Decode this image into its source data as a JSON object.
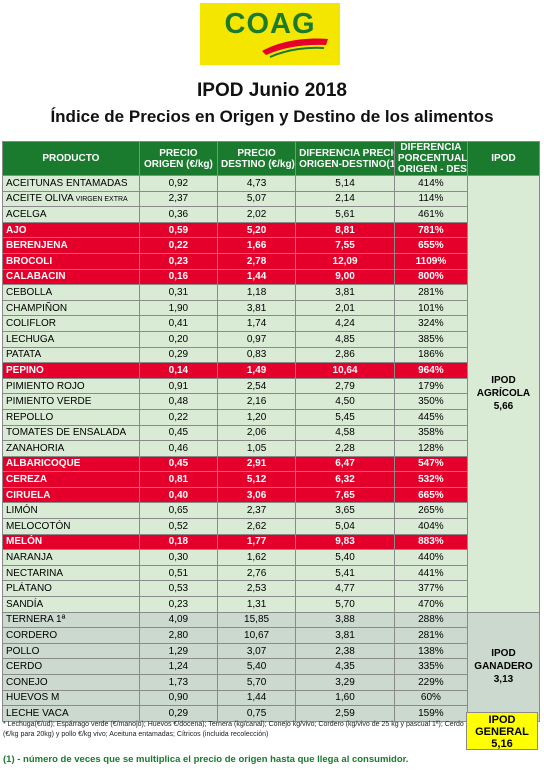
{
  "logo": {
    "text": "COAG",
    "colors": {
      "background": "#f5e600",
      "text": "#1a7a2e",
      "accent": "#e4002b"
    }
  },
  "title": "IPOD Junio 2018",
  "subtitle": "Índice de Precios en Origen y Destino de los alimentos",
  "headers": {
    "producto": "PRODUCTO",
    "precio_origen": [
      "PRECIO",
      "ORIGEN (€/kg)"
    ],
    "precio_destino": [
      "PRECIO",
      "DESTINO (€/kg)"
    ],
    "diferencia": [
      "DIFERENCIA PRECIO",
      "ORIGEN-DESTINO(1)"
    ],
    "porcentual": [
      "DIFERENCIA",
      "PORCENTUAL",
      "ORIGEN - DESTINO"
    ],
    "ipod": "IPOD"
  },
  "colors": {
    "header": "#1a7a2e",
    "highlight": "#e4002b",
    "agricola_bg": "#d9ebd5",
    "ganadero_bg": "#cbd9cf",
    "general_bg": "#ffff00"
  },
  "rows": [
    {
      "producto": "ACEITUNAS ENTAMADAS",
      "origen": "0,92",
      "destino": "4,73",
      "diferencia": "5,14",
      "porcentual": "414%",
      "highlight": false,
      "group": "agr"
    },
    {
      "producto": "ACEITE OLIVA",
      "suffix": "VIRGEN EXTRA",
      "origen": "2,37",
      "destino": "5,07",
      "diferencia": "2,14",
      "porcentual": "114%",
      "highlight": false,
      "group": "agr"
    },
    {
      "producto": "ACELGA",
      "origen": "0,36",
      "destino": "2,02",
      "diferencia": "5,61",
      "porcentual": "461%",
      "highlight": false,
      "group": "agr"
    },
    {
      "producto": "AJO",
      "origen": "0,59",
      "destino": "5,20",
      "diferencia": "8,81",
      "porcentual": "781%",
      "highlight": true,
      "group": "agr"
    },
    {
      "producto": "BERENJENA",
      "origen": "0,22",
      "destino": "1,66",
      "diferencia": "7,55",
      "porcentual": "655%",
      "highlight": true,
      "group": "agr"
    },
    {
      "producto": "BROCOLI",
      "origen": "0,23",
      "destino": "2,78",
      "diferencia": "12,09",
      "porcentual": "1109%",
      "highlight": true,
      "group": "agr"
    },
    {
      "producto": "CALABACIN",
      "origen": "0,16",
      "destino": "1,44",
      "diferencia": "9,00",
      "porcentual": "800%",
      "highlight": true,
      "group": "agr"
    },
    {
      "producto": "CEBOLLA",
      "origen": "0,31",
      "destino": "1,18",
      "diferencia": "3,81",
      "porcentual": "281%",
      "highlight": false,
      "group": "agr"
    },
    {
      "producto": "CHAMPIÑON",
      "origen": "1,90",
      "destino": "3,81",
      "diferencia": "2,01",
      "porcentual": "101%",
      "highlight": false,
      "group": "agr"
    },
    {
      "producto": "COLIFLOR",
      "origen": "0,41",
      "destino": "1,74",
      "diferencia": "4,24",
      "porcentual": "324%",
      "highlight": false,
      "group": "agr"
    },
    {
      "producto": "LECHUGA",
      "origen": "0,20",
      "destino": "0,97",
      "diferencia": "4,85",
      "porcentual": "385%",
      "highlight": false,
      "group": "agr"
    },
    {
      "producto": "PATATA",
      "origen": "0,29",
      "destino": "0,83",
      "diferencia": "2,86",
      "porcentual": "186%",
      "highlight": false,
      "group": "agr"
    },
    {
      "producto": "PEPINO",
      "origen": "0,14",
      "destino": "1,49",
      "diferencia": "10,64",
      "porcentual": "964%",
      "highlight": true,
      "group": "agr"
    },
    {
      "producto": "PIMIENTO ROJO",
      "origen": "0,91",
      "destino": "2,54",
      "diferencia": "2,79",
      "porcentual": "179%",
      "highlight": false,
      "group": "agr"
    },
    {
      "producto": "PIMIENTO VERDE",
      "origen": "0,48",
      "destino": "2,16",
      "diferencia": "4,50",
      "porcentual": "350%",
      "highlight": false,
      "group": "agr"
    },
    {
      "producto": "REPOLLO",
      "origen": "0,22",
      "destino": "1,20",
      "diferencia": "5,45",
      "porcentual": "445%",
      "highlight": false,
      "group": "agr"
    },
    {
      "producto": "TOMATES DE ENSALADA",
      "origen": "0,45",
      "destino": "2,06",
      "diferencia": "4,58",
      "porcentual": "358%",
      "highlight": false,
      "group": "agr"
    },
    {
      "producto": "ZANAHORIA",
      "origen": "0,46",
      "destino": "1,05",
      "diferencia": "2,28",
      "porcentual": "128%",
      "highlight": false,
      "group": "agr"
    },
    {
      "producto": "ALBARICOQUE",
      "origen": "0,45",
      "destino": "2,91",
      "diferencia": "6,47",
      "porcentual": "547%",
      "highlight": true,
      "group": "agr"
    },
    {
      "producto": "CEREZA",
      "origen": "0,81",
      "destino": "5,12",
      "diferencia": "6,32",
      "porcentual": "532%",
      "highlight": true,
      "group": "agr"
    },
    {
      "producto": "CIRUELA",
      "origen": "0,40",
      "destino": "3,06",
      "diferencia": "7,65",
      "porcentual": "665%",
      "highlight": true,
      "group": "agr"
    },
    {
      "producto": "LIMÓN",
      "origen": "0,65",
      "destino": "2,37",
      "diferencia": "3,65",
      "porcentual": "265%",
      "highlight": false,
      "group": "agr"
    },
    {
      "producto": "MELOCOTÓN",
      "origen": "0,52",
      "destino": "2,62",
      "diferencia": "5,04",
      "porcentual": "404%",
      "highlight": false,
      "group": "agr"
    },
    {
      "producto": "MELÓN",
      "origen": "0,18",
      "destino": "1,77",
      "diferencia": "9,83",
      "porcentual": "883%",
      "highlight": true,
      "group": "agr"
    },
    {
      "producto": "NARANJA",
      "origen": "0,30",
      "destino": "1,62",
      "diferencia": "5,40",
      "porcentual": "440%",
      "highlight": false,
      "group": "agr"
    },
    {
      "producto": "NECTARINA",
      "origen": "0,51",
      "destino": "2,76",
      "diferencia": "5,41",
      "porcentual": "441%",
      "highlight": false,
      "group": "agr"
    },
    {
      "producto": "PLÁTANO",
      "origen": "0,53",
      "destino": "2,53",
      "diferencia": "4,77",
      "porcentual": "377%",
      "highlight": false,
      "group": "agr"
    },
    {
      "producto": "SANDÍA",
      "origen": "0,23",
      "destino": "1,31",
      "diferencia": "5,70",
      "porcentual": "470%",
      "highlight": false,
      "group": "agr"
    },
    {
      "producto": "TERNERA 1ª",
      "origen": "4,09",
      "destino": "15,85",
      "diferencia": "3,88",
      "porcentual": "288%",
      "highlight": false,
      "group": "gan"
    },
    {
      "producto": "CORDERO",
      "origen": "2,80",
      "destino": "10,67",
      "diferencia": "3,81",
      "porcentual": "281%",
      "highlight": false,
      "group": "gan"
    },
    {
      "producto": "POLLO",
      "origen": "1,29",
      "destino": "3,07",
      "diferencia": "2,38",
      "porcentual": "138%",
      "highlight": false,
      "group": "gan"
    },
    {
      "producto": "CERDO",
      "origen": "1,24",
      "destino": "5,40",
      "diferencia": "4,35",
      "porcentual": "335%",
      "highlight": false,
      "group": "gan"
    },
    {
      "producto": "CONEJO",
      "origen": "1,73",
      "destino": "5,70",
      "diferencia": "3,29",
      "porcentual": "229%",
      "highlight": false,
      "group": "gan"
    },
    {
      "producto": "HUEVOS M",
      "origen": "0,90",
      "destino": "1,44",
      "diferencia": "1,60",
      "porcentual": "60%",
      "highlight": false,
      "group": "gan"
    },
    {
      "producto": "LECHE VACA",
      "origen": "0,29",
      "destino": "0,75",
      "diferencia": "2,59",
      "porcentual": "159%",
      "highlight": false,
      "group": "gan"
    }
  ],
  "ipod_agricola": {
    "label1": "IPOD",
    "label2": "AGRÍCOLA",
    "value": "5,66"
  },
  "ipod_ganadero": {
    "label1": "IPOD",
    "label2": "GANADERO",
    "value": "3,13"
  },
  "ipod_general": {
    "label1": "IPOD",
    "label2": "GENERAL",
    "value": "5,16"
  },
  "note": "* Lechuga(€/ud); Espárrago verde (€/manojo); Huevos €/docena); Ternera (kg/canal); Conejo kg/vivo; Cordero (kg/vivo de 25 kg y pascual 1ª); Cerdo (€/kg para 20kg) y pollo €/kg vivo; Aceituna entamadas; Cítricos (incluida recolección)",
  "footnote": "(1) - número de veces que se multiplica el precio de origen hasta que llega al consumidor."
}
